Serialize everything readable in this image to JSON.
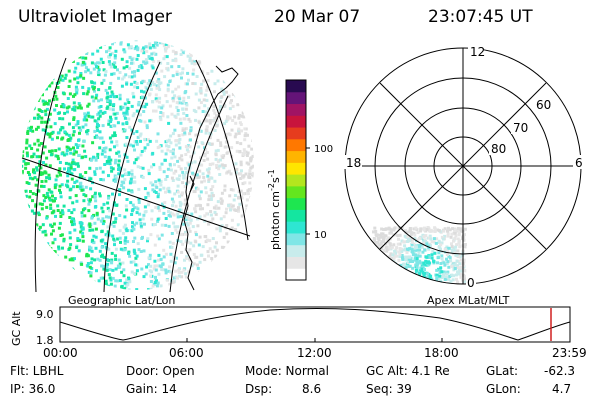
{
  "header": {
    "instrument": "Ultraviolet Imager",
    "date": "20 Mar 07",
    "time": "23:07:45 UT"
  },
  "colorbar": {
    "unit_label": "photon cm",
    "unit_exp1": "-2",
    "unit_mid": "s",
    "unit_exp2": "-1",
    "ticks": [
      "100",
      "10"
    ],
    "colors": [
      "#ffffff",
      "#e6e6e6",
      "#c8ecec",
      "#7fe6e6",
      "#2ee6d2",
      "#14e6a0",
      "#1ee650",
      "#64e61e",
      "#b4e61e",
      "#ffe600",
      "#ffb400",
      "#ff7800",
      "#e63c1e",
      "#c8143c",
      "#a01464",
      "#641478",
      "#280a50"
    ]
  },
  "left_panel": {
    "label": "Geographic Lat/Lon"
  },
  "polar_panel": {
    "label": "Apex MLat/MLT",
    "hour_labels": [
      "12",
      "18",
      "6",
      "0"
    ],
    "lat_labels": [
      "60",
      "70",
      "80"
    ]
  },
  "altitude_strip": {
    "axis_label": "GC Alt",
    "ytick_top": "9.0",
    "ytick_bottom": "1.8",
    "xticks": [
      "00:00",
      "06:00",
      "12:00",
      "18:00",
      "23:59"
    ],
    "marker_color": "#d02020"
  },
  "info": {
    "filter": "Flt: LBHL",
    "ip": "IP: 36.0",
    "door": "Door: Open",
    "gain": "Gain: 14",
    "mode": "Mode: Normal",
    "dsp": "Dsp:",
    "dsp_value": "8.6",
    "gc_alt": "GC Alt: 4.1 Re",
    "seq": "Seq: 39",
    "glat": "GLat:",
    "glat_value": "-62.3",
    "glon": "GLon:",
    "glon_value": "4.7"
  }
}
